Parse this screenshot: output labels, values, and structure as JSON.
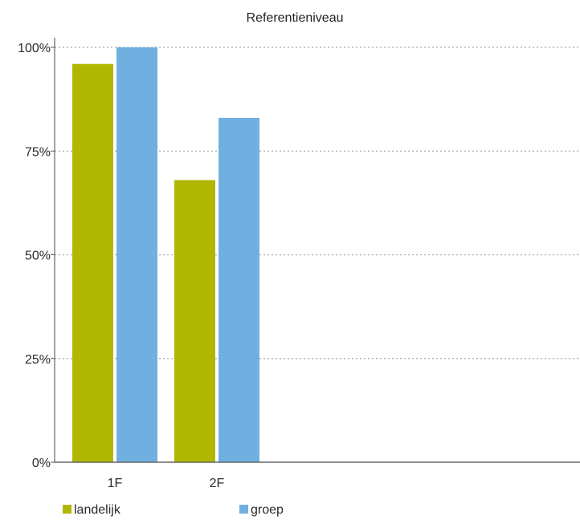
{
  "chart_data": {
    "type": "bar",
    "title": "Referentieniveau",
    "categories": [
      "1F",
      "2F"
    ],
    "series": [
      {
        "name": "landelijk",
        "color": "#b1b700",
        "values": [
          96,
          68
        ]
      },
      {
        "name": "groep",
        "color": "#6fb0e0",
        "values": [
          100,
          83
        ]
      }
    ],
    "yticks": [
      "0%",
      "25%",
      "50%",
      "75%",
      "100%"
    ],
    "ylim": [
      0,
      100
    ],
    "grid": true,
    "legend_position": "bottom-left"
  }
}
